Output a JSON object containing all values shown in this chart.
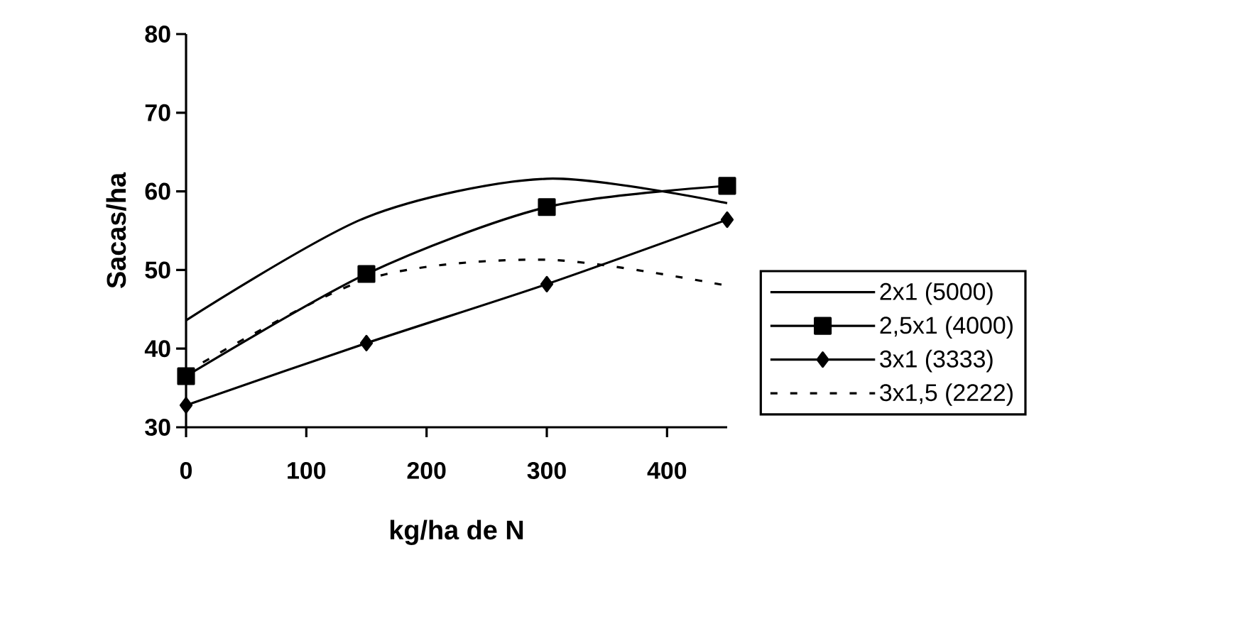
{
  "chart_data": {
    "type": "line",
    "xlabel": "kg/ha de N",
    "ylabel": "Sacas/ha",
    "x": [
      0,
      150,
      300,
      450
    ],
    "series": [
      {
        "name": "2x1 (5000)",
        "color": "#000000",
        "marker": "none",
        "line_style": "solid",
        "values": [
          43.6,
          56.7,
          61.6,
          58.5
        ]
      },
      {
        "name": "2,5x1 (4000)",
        "color": "#000000",
        "marker": "square",
        "line_style": "solid",
        "values": [
          36.5,
          49.5,
          58,
          60.7
        ]
      },
      {
        "name": "3x1 (3333)",
        "color": "#000000",
        "marker": "diamond",
        "line_style": "solid",
        "values": [
          32.8,
          40.7,
          48.2,
          56.4
        ]
      },
      {
        "name": "3x1,5 (2222)",
        "color": "#000000",
        "marker": "none",
        "line_style": "dashed",
        "values": [
          37,
          48.8,
          51.3,
          48
        ]
      }
    ],
    "xlim": [
      0,
      450
    ],
    "ylim": [
      30,
      80
    ],
    "xticks": [
      0,
      100,
      200,
      300,
      400
    ],
    "yticks": [
      30,
      40,
      50,
      60,
      70,
      80
    ],
    "grid": false,
    "legend": "right"
  }
}
